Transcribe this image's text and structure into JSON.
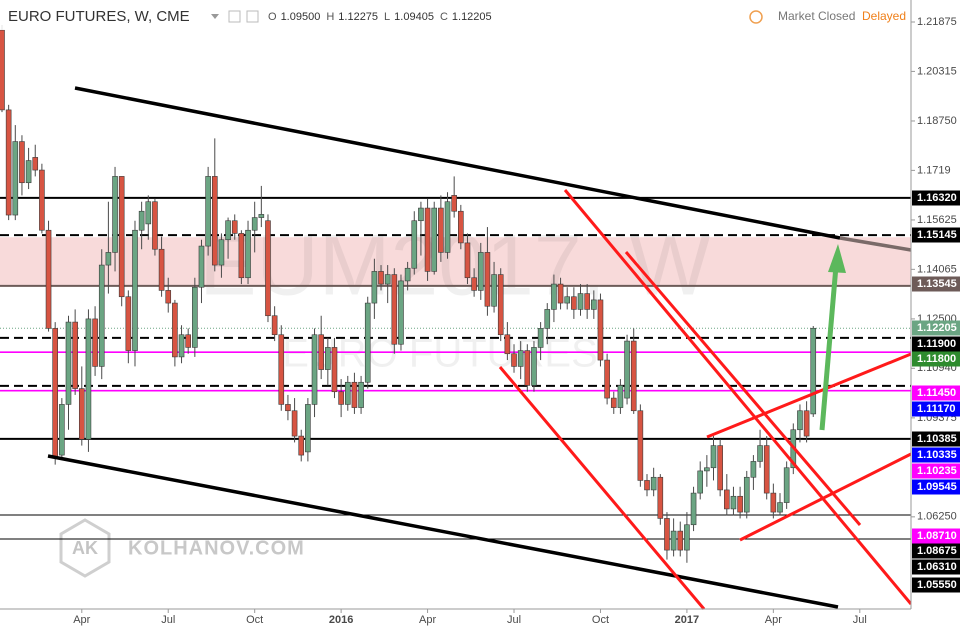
{
  "header": {
    "title": "EURO FUTURES, W, CME",
    "ohlc": [
      {
        "key": "O",
        "value": "1.09500"
      },
      {
        "key": "H",
        "value": "1.12275"
      },
      {
        "key": "L",
        "value": "1.09405"
      },
      {
        "key": "C",
        "value": "1.12205"
      }
    ],
    "status": "Market Closed",
    "delay": "Delayed"
  },
  "watermark": {
    "symbol": "EUM2017, W",
    "name": "EURO FUTURES",
    "logo": "AK",
    "site": "KOLHANOV.COM"
  },
  "chart_data": {
    "type": "candlestick",
    "colors": {
      "up": "#6ba583",
      "down": "#d75442"
    },
    "xlim": [
      -0.3,
      136.7
    ],
    "xticks": [
      {
        "value": 12,
        "label": "Apr"
      },
      {
        "value": 25,
        "label": "Jul"
      },
      {
        "value": 38,
        "label": "Oct"
      },
      {
        "value": 51,
        "label": "2016"
      },
      {
        "value": 64,
        "label": "Apr"
      },
      {
        "value": 77,
        "label": "Jul"
      },
      {
        "value": 90,
        "label": "Oct"
      },
      {
        "value": 103,
        "label": "2017"
      },
      {
        "value": 116,
        "label": "Apr"
      },
      {
        "value": 129,
        "label": "Jul"
      }
    ],
    "ylim": [
      1.0334,
      1.2257
    ],
    "yticks": [
      1.21875,
      1.20315,
      {
        "value": 1.1875,
        "label": "1.18750"
      },
      1.1719,
      1.15625,
      1.14065,
      {
        "value": 1.125,
        "label": "1.12500"
      },
      {
        "value": 1.1094,
        "label": "1.10940"
      },
      1.09375,
      {
        "value": 1.0625,
        "label": "1.06250"
      }
    ],
    "zone": {
      "from": 1.1357,
      "to": 1.1508,
      "color": "#f8dada"
    },
    "price_lines": [
      {
        "value": 1.1632,
        "color": "#000000",
        "style": "thick"
      },
      {
        "value": 1.15145,
        "color": "#000000",
        "style": "dashed"
      },
      {
        "value": 1.13545,
        "color": "#6d5b58",
        "style": "thick"
      },
      {
        "value": 1.12205,
        "color": "#6ba583",
        "style": "dotted"
      },
      {
        "value": 1.119,
        "color": "#000000",
        "style": "dashed"
      },
      {
        "value": 1.1145,
        "color": "#ff00ff",
        "style": "solid"
      },
      {
        "value": 1.10385,
        "color": "#000000",
        "style": "dashed"
      },
      {
        "value": 1.10235,
        "color": "#ff00ff",
        "style": "solid"
      },
      {
        "value": 1.0871,
        "color": "#000000",
        "style": "thick"
      },
      {
        "value": 1.0631,
        "color": "#000000",
        "style": "thin"
      },
      {
        "value": 1.0555,
        "color": "#000000",
        "style": "thin"
      }
    ],
    "price_labels": [
      {
        "label": "1.16320",
        "bg": "#000000"
      },
      {
        "label": "1.15145",
        "bg": "#000000"
      },
      {
        "label": "1.13545",
        "bg": "#6d5b58"
      },
      {
        "label": "1.12205",
        "bg": "#6ba583"
      },
      {
        "label": "1.11900",
        "bg": "#000000"
      },
      {
        "label": "1.11800",
        "bg": "#2e8b2e"
      },
      {
        "label": "1.11450",
        "bg": "#ff00ff"
      },
      {
        "label": "1.11170",
        "bg": "#0000ff"
      },
      {
        "label": "1.10385",
        "bg": "#000000"
      },
      {
        "label": "1.10335",
        "bg": "#0000ff"
      },
      {
        "label": "1.10235",
        "bg": "#ff00ff"
      },
      {
        "label": "1.09545",
        "bg": "#0000ff"
      },
      {
        "label": "1.08710",
        "bg": "#ff00ff"
      },
      {
        "label": "1.08675",
        "bg": "#000000"
      },
      {
        "label": "1.06310",
        "bg": "#000000"
      },
      {
        "label": "1.05550",
        "bg": "#000000"
      }
    ],
    "candles": [
      {
        "o": 1.2162,
        "h": 1.2178,
        "l": 1.1903,
        "c": 1.191
      },
      {
        "o": 1.191,
        "h": 1.1926,
        "l": 1.1562,
        "c": 1.1578
      },
      {
        "o": 1.1578,
        "h": 1.1862,
        "l": 1.1562,
        "c": 1.181
      },
      {
        "o": 1.181,
        "h": 1.183,
        "l": 1.164,
        "c": 1.168
      },
      {
        "o": 1.168,
        "h": 1.179,
        "l": 1.166,
        "c": 1.175
      },
      {
        "o": 1.176,
        "h": 1.18,
        "l": 1.17,
        "c": 1.172
      },
      {
        "o": 1.172,
        "h": 1.174,
        "l": 1.152,
        "c": 1.153
      },
      {
        "o": 1.153,
        "h": 1.156,
        "l": 1.121,
        "c": 1.122
      },
      {
        "o": 1.122,
        "h": 1.124,
        "l": 1.079,
        "c": 1.081
      },
      {
        "o": 1.082,
        "h": 1.1,
        "l": 1.081,
        "c": 1.098
      },
      {
        "o": 1.098,
        "h": 1.126,
        "l": 1.09,
        "c": 1.124
      },
      {
        "o": 1.124,
        "h": 1.128,
        "l": 1.101,
        "c": 1.103
      },
      {
        "o": 1.103,
        "h": 1.11,
        "l": 1.085,
        "c": 1.087
      },
      {
        "o": 1.087,
        "h": 1.128,
        "l": 1.083,
        "c": 1.125
      },
      {
        "o": 1.125,
        "h": 1.129,
        "l": 1.107,
        "c": 1.11
      },
      {
        "o": 1.11,
        "h": 1.147,
        "l": 1.106,
        "c": 1.142
      },
      {
        "o": 1.142,
        "h": 1.162,
        "l": 1.133,
        "c": 1.146
      },
      {
        "o": 1.146,
        "h": 1.173,
        "l": 1.14,
        "c": 1.17
      },
      {
        "o": 1.17,
        "h": 1.17,
        "l": 1.129,
        "c": 1.132
      },
      {
        "o": 1.132,
        "h": 1.134,
        "l": 1.111,
        "c": 1.115
      },
      {
        "o": 1.115,
        "h": 1.156,
        "l": 1.11,
        "c": 1.153
      },
      {
        "o": 1.153,
        "h": 1.162,
        "l": 1.147,
        "c": 1.159
      },
      {
        "o": 1.155,
        "h": 1.164,
        "l": 1.15,
        "c": 1.162
      },
      {
        "o": 1.162,
        "h": 1.163,
        "l": 1.145,
        "c": 1.147
      },
      {
        "o": 1.147,
        "h": 1.151,
        "l": 1.132,
        "c": 1.134
      },
      {
        "o": 1.134,
        "h": 1.138,
        "l": 1.127,
        "c": 1.13
      },
      {
        "o": 1.13,
        "h": 1.131,
        "l": 1.11,
        "c": 1.113
      },
      {
        "o": 1.113,
        "h": 1.123,
        "l": 1.111,
        "c": 1.12
      },
      {
        "o": 1.12,
        "h": 1.122,
        "l": 1.114,
        "c": 1.116
      },
      {
        "o": 1.116,
        "h": 1.138,
        "l": 1.113,
        "c": 1.135
      },
      {
        "o": 1.135,
        "h": 1.15,
        "l": 1.13,
        "c": 1.148
      },
      {
        "o": 1.148,
        "h": 1.173,
        "l": 1.145,
        "c": 1.17
      },
      {
        "o": 1.17,
        "h": 1.182,
        "l": 1.14,
        "c": 1.142
      },
      {
        "o": 1.142,
        "h": 1.152,
        "l": 1.138,
        "c": 1.15
      },
      {
        "o": 1.15,
        "h": 1.157,
        "l": 1.144,
        "c": 1.156
      },
      {
        "o": 1.156,
        "h": 1.158,
        "l": 1.15,
        "c": 1.152
      },
      {
        "o": 1.152,
        "h": 1.153,
        "l": 1.136,
        "c": 1.138
      },
      {
        "o": 1.138,
        "h": 1.156,
        "l": 1.136,
        "c": 1.153
      },
      {
        "o": 1.153,
        "h": 1.162,
        "l": 1.146,
        "c": 1.157
      },
      {
        "o": 1.157,
        "h": 1.167,
        "l": 1.154,
        "c": 1.158
      },
      {
        "o": 1.156,
        "h": 1.158,
        "l": 1.124,
        "c": 1.126
      },
      {
        "o": 1.126,
        "h": 1.129,
        "l": 1.118,
        "c": 1.12
      },
      {
        "o": 1.12,
        "h": 1.123,
        "l": 1.096,
        "c": 1.098
      },
      {
        "o": 1.098,
        "h": 1.101,
        "l": 1.093,
        "c": 1.096
      },
      {
        "o": 1.096,
        "h": 1.1,
        "l": 1.086,
        "c": 1.088
      },
      {
        "o": 1.088,
        "h": 1.09,
        "l": 1.08,
        "c": 1.082
      },
      {
        "o": 1.083,
        "h": 1.1,
        "l": 1.08,
        "c": 1.098
      },
      {
        "o": 1.098,
        "h": 1.122,
        "l": 1.094,
        "c": 1.12
      },
      {
        "o": 1.12,
        "h": 1.126,
        "l": 1.106,
        "c": 1.109
      },
      {
        "o": 1.109,
        "h": 1.119,
        "l": 1.104,
        "c": 1.116
      },
      {
        "o": 1.116,
        "h": 1.119,
        "l": 1.1,
        "c": 1.102
      },
      {
        "o": 1.102,
        "h": 1.106,
        "l": 1.094,
        "c": 1.098
      },
      {
        "o": 1.098,
        "h": 1.107,
        "l": 1.096,
        "c": 1.105
      },
      {
        "o": 1.105,
        "h": 1.108,
        "l": 1.095,
        "c": 1.097
      },
      {
        "o": 1.097,
        "h": 1.107,
        "l": 1.095,
        "c": 1.105
      },
      {
        "o": 1.105,
        "h": 1.132,
        "l": 1.103,
        "c": 1.13
      },
      {
        "o": 1.13,
        "h": 1.144,
        "l": 1.125,
        "c": 1.14
      },
      {
        "o": 1.14,
        "h": 1.142,
        "l": 1.134,
        "c": 1.136
      },
      {
        "o": 1.136,
        "h": 1.142,
        "l": 1.13,
        "c": 1.139
      },
      {
        "o": 1.139,
        "h": 1.141,
        "l": 1.114,
        "c": 1.117
      },
      {
        "o": 1.117,
        "h": 1.139,
        "l": 1.115,
        "c": 1.137
      },
      {
        "o": 1.137,
        "h": 1.143,
        "l": 1.134,
        "c": 1.141
      },
      {
        "o": 1.141,
        "h": 1.159,
        "l": 1.139,
        "c": 1.156
      },
      {
        "o": 1.156,
        "h": 1.162,
        "l": 1.145,
        "c": 1.16
      },
      {
        "o": 1.16,
        "h": 1.163,
        "l": 1.137,
        "c": 1.14
      },
      {
        "o": 1.14,
        "h": 1.162,
        "l": 1.139,
        "c": 1.16
      },
      {
        "o": 1.16,
        "h": 1.164,
        "l": 1.143,
        "c": 1.146
      },
      {
        "o": 1.146,
        "h": 1.165,
        "l": 1.144,
        "c": 1.162
      },
      {
        "o": 1.164,
        "h": 1.17,
        "l": 1.157,
        "c": 1.159
      },
      {
        "o": 1.159,
        "h": 1.161,
        "l": 1.147,
        "c": 1.149
      },
      {
        "o": 1.149,
        "h": 1.152,
        "l": 1.136,
        "c": 1.138
      },
      {
        "o": 1.138,
        "h": 1.141,
        "l": 1.132,
        "c": 1.134
      },
      {
        "o": 1.134,
        "h": 1.149,
        "l": 1.131,
        "c": 1.146
      },
      {
        "o": 1.146,
        "h": 1.154,
        "l": 1.126,
        "c": 1.129
      },
      {
        "o": 1.129,
        "h": 1.143,
        "l": 1.127,
        "c": 1.139
      },
      {
        "o": 1.139,
        "h": 1.141,
        "l": 1.118,
        "c": 1.12
      },
      {
        "o": 1.12,
        "h": 1.124,
        "l": 1.112,
        "c": 1.114
      },
      {
        "o": 1.114,
        "h": 1.117,
        "l": 1.108,
        "c": 1.11
      },
      {
        "o": 1.11,
        "h": 1.118,
        "l": 1.106,
        "c": 1.115
      },
      {
        "o": 1.115,
        "h": 1.117,
        "l": 1.102,
        "c": 1.104
      },
      {
        "o": 1.104,
        "h": 1.118,
        "l": 1.102,
        "c": 1.116
      },
      {
        "o": 1.116,
        "h": 1.124,
        "l": 1.112,
        "c": 1.122
      },
      {
        "o": 1.122,
        "h": 1.13,
        "l": 1.117,
        "c": 1.128
      },
      {
        "o": 1.128,
        "h": 1.139,
        "l": 1.124,
        "c": 1.136
      },
      {
        "o": 1.136,
        "h": 1.138,
        "l": 1.128,
        "c": 1.13
      },
      {
        "o": 1.13,
        "h": 1.135,
        "l": 1.128,
        "c": 1.132
      },
      {
        "o": 1.132,
        "h": 1.135,
        "l": 1.125,
        "c": 1.128
      },
      {
        "o": 1.128,
        "h": 1.136,
        "l": 1.126,
        "c": 1.133
      },
      {
        "o": 1.133,
        "h": 1.136,
        "l": 1.125,
        "c": 1.128
      },
      {
        "o": 1.128,
        "h": 1.134,
        "l": 1.125,
        "c": 1.131
      },
      {
        "o": 1.131,
        "h": 1.133,
        "l": 1.11,
        "c": 1.112
      },
      {
        "o": 1.112,
        "h": 1.114,
        "l": 1.098,
        "c": 1.1
      },
      {
        "o": 1.1,
        "h": 1.102,
        "l": 1.095,
        "c": 1.097
      },
      {
        "o": 1.097,
        "h": 1.106,
        "l": 1.095,
        "c": 1.104
      },
      {
        "o": 1.1,
        "h": 1.12,
        "l": 1.098,
        "c": 1.118
      },
      {
        "o": 1.118,
        "h": 1.122,
        "l": 1.095,
        "c": 1.096
      },
      {
        "o": 1.096,
        "h": 1.098,
        "l": 1.072,
        "c": 1.074
      },
      {
        "o": 1.074,
        "h": 1.076,
        "l": 1.069,
        "c": 1.071
      },
      {
        "o": 1.071,
        "h": 1.078,
        "l": 1.069,
        "c": 1.075
      },
      {
        "o": 1.075,
        "h": 1.076,
        "l": 1.06,
        "c": 1.062
      },
      {
        "o": 1.062,
        "h": 1.064,
        "l": 1.049,
        "c": 1.052
      },
      {
        "o": 1.052,
        "h": 1.062,
        "l": 1.05,
        "c": 1.058
      },
      {
        "o": 1.058,
        "h": 1.061,
        "l": 1.05,
        "c": 1.052
      },
      {
        "o": 1.052,
        "h": 1.064,
        "l": 1.048,
        "c": 1.06
      },
      {
        "o": 1.06,
        "h": 1.072,
        "l": 1.058,
        "c": 1.07
      },
      {
        "o": 1.07,
        "h": 1.08,
        "l": 1.068,
        "c": 1.077
      },
      {
        "o": 1.077,
        "h": 1.082,
        "l": 1.072,
        "c": 1.078
      },
      {
        "o": 1.078,
        "h": 1.088,
        "l": 1.074,
        "c": 1.085
      },
      {
        "o": 1.085,
        "h": 1.087,
        "l": 1.069,
        "c": 1.071
      },
      {
        "o": 1.071,
        "h": 1.076,
        "l": 1.063,
        "c": 1.065
      },
      {
        "o": 1.065,
        "h": 1.072,
        "l": 1.063,
        "c": 1.069
      },
      {
        "o": 1.069,
        "h": 1.072,
        "l": 1.062,
        "c": 1.064
      },
      {
        "o": 1.064,
        "h": 1.077,
        "l": 1.062,
        "c": 1.075
      },
      {
        "o": 1.075,
        "h": 1.082,
        "l": 1.071,
        "c": 1.08
      },
      {
        "o": 1.08,
        "h": 1.09,
        "l": 1.078,
        "c": 1.085
      },
      {
        "o": 1.085,
        "h": 1.088,
        "l": 1.068,
        "c": 1.07
      },
      {
        "o": 1.07,
        "h": 1.073,
        "l": 1.062,
        "c": 1.064
      },
      {
        "o": 1.064,
        "h": 1.07,
        "l": 1.063,
        "c": 1.067
      },
      {
        "o": 1.067,
        "h": 1.08,
        "l": 1.065,
        "c": 1.078
      },
      {
        "o": 1.078,
        "h": 1.092,
        "l": 1.076,
        "c": 1.09
      },
      {
        "o": 1.09,
        "h": 1.098,
        "l": 1.086,
        "c": 1.096
      },
      {
        "o": 1.096,
        "h": 1.099,
        "l": 1.086,
        "c": 1.088
      },
      {
        "o": 1.095,
        "h": 1.12275,
        "l": 1.09405,
        "c": 1.12205
      }
    ]
  }
}
